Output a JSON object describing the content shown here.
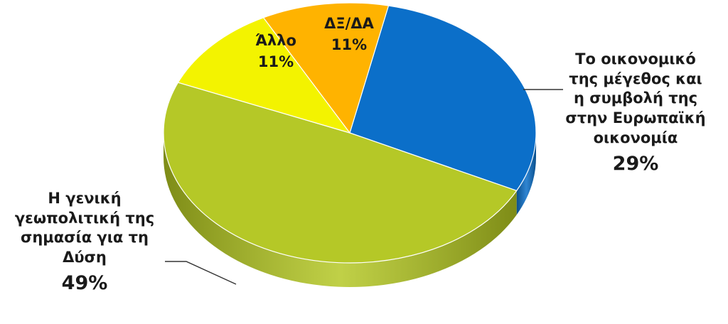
{
  "chart_data": {
    "type": "pie",
    "slices": [
      {
        "label": "Το οικονομικό της μέγεθος και η συμβολή της στην Ευρωπαϊκή οικονομία",
        "display_lines": [
          "Το οικονομικό",
          "της μέγεθος και",
          "η συμβολή της",
          "στην Ευρωπαϊκή",
          "οικονομία"
        ],
        "value": 29,
        "value_label": "29%",
        "color": "#0b6fc9",
        "side_color": "#0a4f8c"
      },
      {
        "label": "Η γενική γεωπολιτική της σημασία για τη Δύση",
        "display_lines": [
          "Η γενική",
          "γεωπολιτική της",
          "σημασία για τη",
          "Δύση"
        ],
        "value": 49,
        "value_label": "49%",
        "color": "#b5c827",
        "side_color": "#7e8c17"
      },
      {
        "label": "Άλλο",
        "display_lines": [
          "Άλλο"
        ],
        "value": 11,
        "value_label": "11%",
        "color": "#f3f300",
        "side_color": "#b3b300"
      },
      {
        "label": "ΔΞ/ΔΑ",
        "display_lines": [
          "ΔΞ/ΔΑ"
        ],
        "value": 11,
        "value_label": "11%",
        "color": "#ffb300",
        "side_color": "#b37d00"
      }
    ]
  }
}
